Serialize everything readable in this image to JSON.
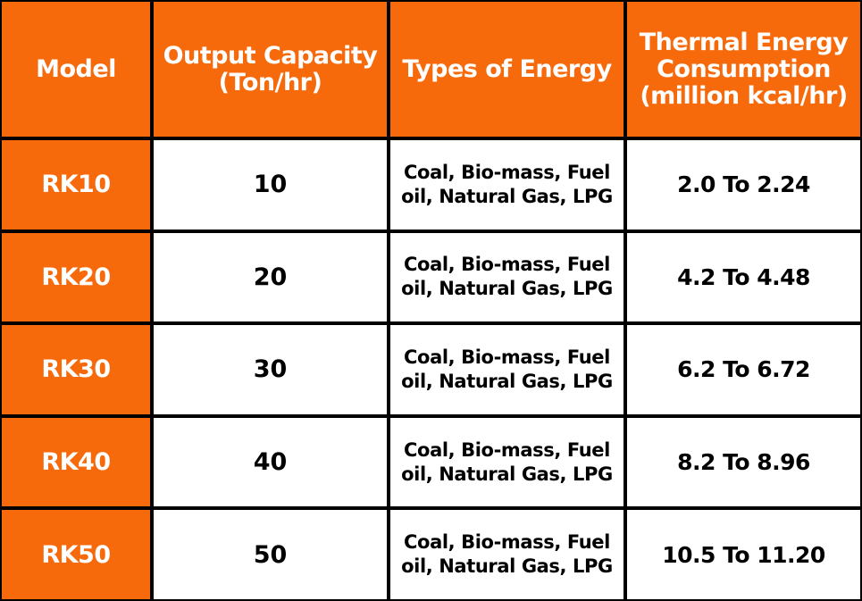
{
  "colors": {
    "accent": "#f76a0c",
    "grid": "#000000",
    "cell_background": "#ffffff",
    "header_text": "#ffffff",
    "body_text": "#000000"
  },
  "table": {
    "headers": [
      "Model",
      "Output Capacity (Ton/hr)",
      "Types of Energy",
      "Thermal Energy Consumption (million kcal/hr)"
    ],
    "rows": [
      {
        "model": "RK10",
        "capacity": "10",
        "energy_types": "Coal, Bio-mass, Fuel oil, Natural Gas, LPG",
        "thermal": "2.0 To 2.24"
      },
      {
        "model": "RK20",
        "capacity": "20",
        "energy_types": "Coal, Bio-mass, Fuel oil, Natural Gas, LPG",
        "thermal": "4.2 To 4.48"
      },
      {
        "model": "RK30",
        "capacity": "30",
        "energy_types": "Coal, Bio-mass, Fuel oil, Natural Gas, LPG",
        "thermal": "6.2 To 6.72"
      },
      {
        "model": "RK40",
        "capacity": "40",
        "energy_types": "Coal, Bio-mass, Fuel oil, Natural Gas, LPG",
        "thermal": "8.2 To 8.96"
      },
      {
        "model": "RK50",
        "capacity": "50",
        "energy_types": "Coal, Bio-mass, Fuel oil, Natural Gas, LPG",
        "thermal": "10.5 To 11.20"
      }
    ]
  }
}
